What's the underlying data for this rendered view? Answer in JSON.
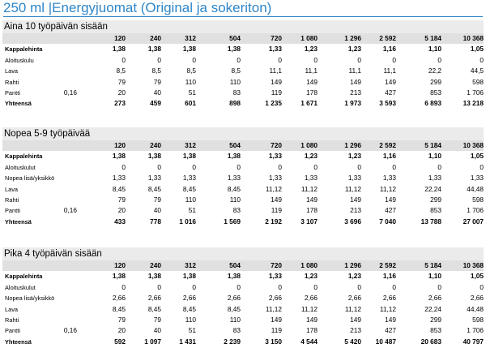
{
  "title": "250 ml |Energyjuomat (Original ja sokeriton)",
  "sections": [
    {
      "heading": "Aina 10 työpäivän sisään",
      "columns": [
        "120",
        "240",
        "312",
        "504",
        "720",
        "1 080",
        "1 296",
        "2 592",
        "5 184",
        "10 368"
      ],
      "rows": [
        {
          "label": "Kappalehinta",
          "extra": "",
          "bold": true,
          "values": [
            "1,38",
            "1,38",
            "1,38",
            "1,38",
            "1,33",
            "1,23",
            "1,23",
            "1,16",
            "1,10",
            "1,05"
          ]
        },
        {
          "label": "Aloituskulu",
          "extra": "",
          "bold": false,
          "values": [
            "0",
            "0",
            "0",
            "0",
            "0",
            "0",
            "0",
            "0",
            "0",
            "0"
          ]
        },
        {
          "label": "Lava",
          "extra": "",
          "bold": false,
          "values": [
            "8,5",
            "8,5",
            "8,5",
            "8,5",
            "11,1",
            "11,1",
            "11,1",
            "11,1",
            "22,2",
            "44,5"
          ]
        },
        {
          "label": "Rahti",
          "extra": "",
          "bold": false,
          "values": [
            "79",
            "79",
            "110",
            "110",
            "149",
            "149",
            "149",
            "149",
            "299",
            "598"
          ]
        },
        {
          "label": "Pantti",
          "extra": "0,16",
          "bold": false,
          "values": [
            "20",
            "40",
            "51",
            "83",
            "119",
            "178",
            "213",
            "427",
            "853",
            "1 706"
          ]
        },
        {
          "label": "Yhteensä",
          "extra": "",
          "bold": true,
          "values": [
            "273",
            "459",
            "601",
            "898",
            "1 235",
            "1 671",
            "1 973",
            "3 593",
            "6 893",
            "13 218"
          ]
        }
      ]
    },
    {
      "heading": "Nopea 5-9 työpäivää",
      "columns": [
        "120",
        "240",
        "312",
        "504",
        "720",
        "1 080",
        "1 296",
        "2 592",
        "5 184",
        "10 368"
      ],
      "rows": [
        {
          "label": "Kappalehinta",
          "extra": "",
          "bold": true,
          "values": [
            "1,38",
            "1,38",
            "1,38",
            "1,38",
            "1,33",
            "1,23",
            "1,23",
            "1,16",
            "1,10",
            "1,05"
          ]
        },
        {
          "label": "Aloituskulut",
          "extra": "",
          "bold": false,
          "values": [
            "0",
            "0",
            "0",
            "0",
            "0",
            "0",
            "0",
            "0",
            "0",
            "0"
          ]
        },
        {
          "label": "Nopea lisä/yksikkö",
          "extra": "",
          "bold": false,
          "values": [
            "1,33",
            "1,33",
            "1,33",
            "1,33",
            "1,33",
            "1,33",
            "1,33",
            "1,33",
            "1,33",
            "1,33"
          ]
        },
        {
          "label": "Lava",
          "extra": "",
          "bold": false,
          "values": [
            "8,45",
            "8,45",
            "8,45",
            "8,45",
            "11,12",
            "11,12",
            "11,12",
            "11,12",
            "22,24",
            "44,48"
          ]
        },
        {
          "label": "Rahti",
          "extra": "",
          "bold": false,
          "values": [
            "79",
            "79",
            "110",
            "110",
            "149",
            "149",
            "149",
            "149",
            "299",
            "598"
          ]
        },
        {
          "label": "Pantti",
          "extra": "0,16",
          "bold": false,
          "values": [
            "20",
            "40",
            "51",
            "83",
            "119",
            "178",
            "213",
            "427",
            "853",
            "1 706"
          ]
        },
        {
          "label": "Yhteensä",
          "extra": "",
          "bold": true,
          "values": [
            "433",
            "778",
            "1 016",
            "1 569",
            "2 192",
            "3 107",
            "3 696",
            "7 040",
            "13 788",
            "27 007"
          ]
        }
      ]
    },
    {
      "heading": "Pika 4 työpäivän sisään",
      "columns": [
        "120",
        "240",
        "312",
        "504",
        "720",
        "1 080",
        "1 296",
        "2 592",
        "5 184",
        "10 368"
      ],
      "rows": [
        {
          "label": "Kappalehinta",
          "extra": "",
          "bold": true,
          "values": [
            "1,38",
            "1,38",
            "1,38",
            "1,38",
            "1,33",
            "1,23",
            "1,23",
            "1,16",
            "1,10",
            "1,05"
          ]
        },
        {
          "label": "Aloituskulut",
          "extra": "",
          "bold": false,
          "values": [
            "0",
            "0",
            "0",
            "0",
            "0",
            "0",
            "0",
            "0",
            "0",
            "0"
          ]
        },
        {
          "label": "Nopea lisä/yksikkö",
          "extra": "",
          "bold": false,
          "values": [
            "2,66",
            "2,66",
            "2,66",
            "2,66",
            "2,66",
            "2,66",
            "2,66",
            "2,66",
            "2,66",
            "2,66"
          ]
        },
        {
          "label": "Lava",
          "extra": "",
          "bold": false,
          "values": [
            "8,45",
            "8,45",
            "8,45",
            "8,45",
            "11,12",
            "11,12",
            "11,12",
            "11,12",
            "22,24",
            "44,48"
          ]
        },
        {
          "label": "Rahti",
          "extra": "",
          "bold": false,
          "values": [
            "79",
            "79",
            "110",
            "110",
            "149",
            "149",
            "149",
            "149",
            "299",
            "598"
          ]
        },
        {
          "label": "Pantti",
          "extra": "0,16",
          "bold": false,
          "values": [
            "20",
            "40",
            "51",
            "83",
            "119",
            "178",
            "213",
            "427",
            "853",
            "1 706"
          ]
        },
        {
          "label": "Yhteensä",
          "extra": "",
          "bold": true,
          "values": [
            "592",
            "1 097",
            "1 431",
            "2 239",
            "3 150",
            "4 544",
            "5 420",
            "10 487",
            "20 683",
            "40 797"
          ]
        }
      ]
    }
  ]
}
